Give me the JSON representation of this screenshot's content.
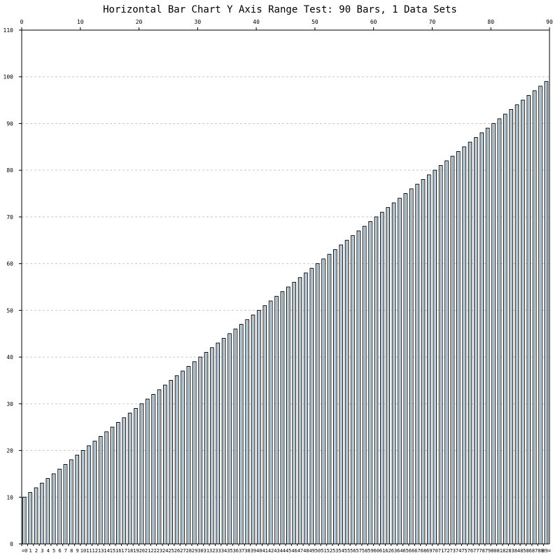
{
  "chart_data": {
    "type": "bar",
    "title": "Horizontal Bar Chart Y Axis Range Test: 90 Bars, 1 Data Sets",
    "categories": [
      "=0",
      "1",
      "2",
      "3",
      "4",
      "5",
      "6",
      "7",
      "8",
      "9",
      "10",
      "11",
      "12",
      "13",
      "14",
      "15",
      "16",
      "17",
      "18",
      "19",
      "20",
      "21",
      "22",
      "23",
      "24",
      "25",
      "26",
      "27",
      "28",
      "29",
      "30",
      "31",
      "32",
      "33",
      "34",
      "35",
      "36",
      "37",
      "38",
      "39",
      "40",
      "41",
      "42",
      "43",
      "44",
      "45",
      "46",
      "47",
      "48",
      "49",
      "50",
      "51",
      "52",
      "53",
      "54",
      "55",
      "56",
      "57",
      "58",
      "59",
      "60",
      "61",
      "62",
      "63",
      "64",
      "65",
      "66",
      "67",
      "68",
      "69",
      "70",
      "71",
      "72",
      "73",
      "74",
      "75",
      "76",
      "77",
      "78",
      "79",
      "80",
      "81",
      "82",
      "83",
      "84",
      "85",
      "86",
      "87",
      "88",
      "89="
    ],
    "values": [
      10,
      11,
      12,
      13,
      14,
      15,
      16,
      17,
      18,
      19,
      20,
      21,
      22,
      23,
      24,
      25,
      26,
      27,
      28,
      29,
      30,
      31,
      32,
      33,
      34,
      35,
      36,
      37,
      38,
      39,
      40,
      41,
      42,
      43,
      44,
      45,
      46,
      47,
      48,
      49,
      50,
      51,
      52,
      53,
      54,
      55,
      56,
      57,
      58,
      59,
      60,
      61,
      62,
      63,
      64,
      65,
      66,
      67,
      68,
      69,
      70,
      71,
      72,
      73,
      74,
      75,
      76,
      77,
      78,
      79,
      80,
      81,
      82,
      83,
      84,
      85,
      86,
      87,
      88,
      89,
      90,
      91,
      92,
      93,
      94,
      95,
      96,
      97,
      98,
      99
    ],
    "ylim": [
      0,
      110
    ],
    "y_ticks": [
      "0",
      "10",
      "20",
      "30",
      "40",
      "50",
      "60",
      "70",
      "80",
      "90",
      "100",
      "110"
    ],
    "xlim": [
      0,
      90
    ],
    "top_ticks": [
      "0",
      "10",
      "20",
      "30",
      "40",
      "50",
      "60",
      "70",
      "80",
      "90"
    ],
    "grid": true,
    "colors": {
      "bar_fill": "#ffffff",
      "bar_stroke": "#000000",
      "bar_inner": "#3a7fb0",
      "grid": "#c8c8c8",
      "axis": "#000000"
    }
  }
}
